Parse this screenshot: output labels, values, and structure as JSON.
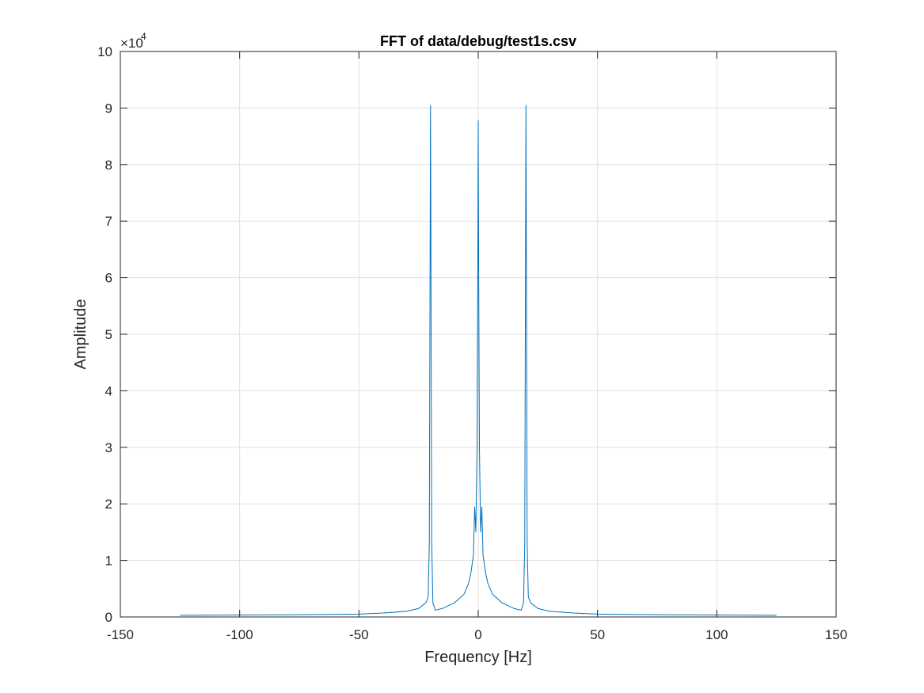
{
  "chart_data": {
    "type": "line",
    "title": "FFT of data/debug/test1s.csv",
    "xlabel": "Frequency [Hz]",
    "ylabel": "Amplitude",
    "xlim": [
      -150,
      150
    ],
    "ylim": [
      0,
      100000
    ],
    "xticks": [
      -150,
      -100,
      -50,
      0,
      50,
      100,
      150
    ],
    "yticks": [
      0,
      10000,
      20000,
      30000,
      40000,
      50000,
      60000,
      70000,
      80000,
      90000,
      100000
    ],
    "xtick_labels": [
      "-150",
      "-100",
      "-50",
      "0",
      "50",
      "100",
      "150"
    ],
    "ytick_labels": [
      "0",
      "1",
      "2",
      "3",
      "4",
      "5",
      "6",
      "7",
      "8",
      "9",
      "10"
    ],
    "y_exponent": {
      "base": "×10",
      "power": "4"
    },
    "grid": true,
    "line_color": "#0072BD",
    "series": [
      {
        "x": [
          -125,
          -100,
          -75,
          -50,
          -40,
          -30,
          -25,
          -22,
          -21,
          -20.5,
          -20,
          -19.5,
          -19,
          -18,
          -15,
          -10,
          -6,
          -4,
          -3,
          -2,
          -1.5,
          -1,
          -0.5,
          -0.2,
          0,
          0.2,
          0.5,
          1,
          1.5,
          2,
          3,
          4,
          6,
          10,
          15,
          18,
          19,
          19.5,
          20,
          20.5,
          21,
          22,
          25,
          30,
          40,
          50,
          75,
          100,
          125
        ],
        "y": [
          300,
          350,
          400,
          500,
          700,
          1000,
          1500,
          2500,
          3500,
          13000,
          90500,
          13000,
          2500,
          1200,
          1500,
          2500,
          4000,
          6000,
          8000,
          11000,
          19500,
          15000,
          30000,
          60000,
          87800,
          60000,
          30000,
          15000,
          19500,
          11000,
          8000,
          6000,
          4000,
          2500,
          1500,
          1200,
          2500,
          13000,
          90500,
          13000,
          3500,
          2500,
          1500,
          1000,
          700,
          500,
          400,
          350,
          300
        ]
      }
    ]
  }
}
